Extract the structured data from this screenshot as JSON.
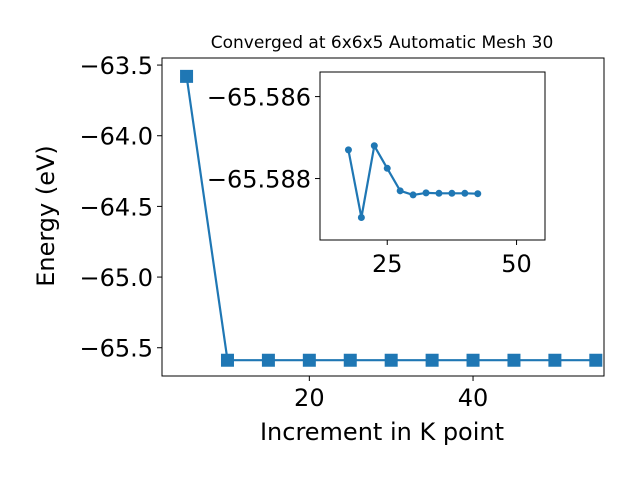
{
  "chart_data": [
    {
      "type": "line",
      "title": "Converged at 6x6x5 Automatic Mesh 30",
      "xlabel": "Increment in K point",
      "ylabel": "Energy (eV)",
      "xlim": [
        2,
        56
      ],
      "ylim": [
        -65.7,
        -63.45
      ],
      "xticks": [
        "20",
        "40"
      ],
      "yticks": [
        "−63.5",
        "−64.0",
        "−64.5",
        "−65.0",
        "−65.5"
      ],
      "marker": "square",
      "color": "#1f77b4",
      "grid": false,
      "series": [
        {
          "x": [
            5,
            10,
            15,
            20,
            25,
            30,
            35,
            40,
            45,
            50,
            55
          ],
          "y": [
            -63.58,
            -65.5885,
            -65.5885,
            -65.5885,
            -65.5885,
            -65.5885,
            -65.5885,
            -65.5885,
            -65.5885,
            -65.5885,
            -65.5885
          ]
        }
      ]
    },
    {
      "type": "line",
      "title": "",
      "xlabel": "",
      "ylabel": "",
      "xlim": [
        12,
        55.5
      ],
      "ylim": [
        -65.5895,
        -65.5854
      ],
      "xticks": [
        "25",
        "50"
      ],
      "yticks": [
        "−65.588",
        "−65.586"
      ],
      "marker": "circle",
      "color": "#1f77b4",
      "grid": false,
      "series": [
        {
          "x": [
            17.5,
            20,
            22.5,
            25,
            27.5,
            30,
            32.5,
            35,
            37.5,
            40,
            42.5
          ],
          "y": [
            -65.5873,
            -65.58895,
            -65.5872,
            -65.58775,
            -65.5883,
            -65.5884,
            -65.58835,
            -65.58836,
            -65.58836,
            -65.58836,
            -65.58837
          ]
        }
      ]
    }
  ]
}
